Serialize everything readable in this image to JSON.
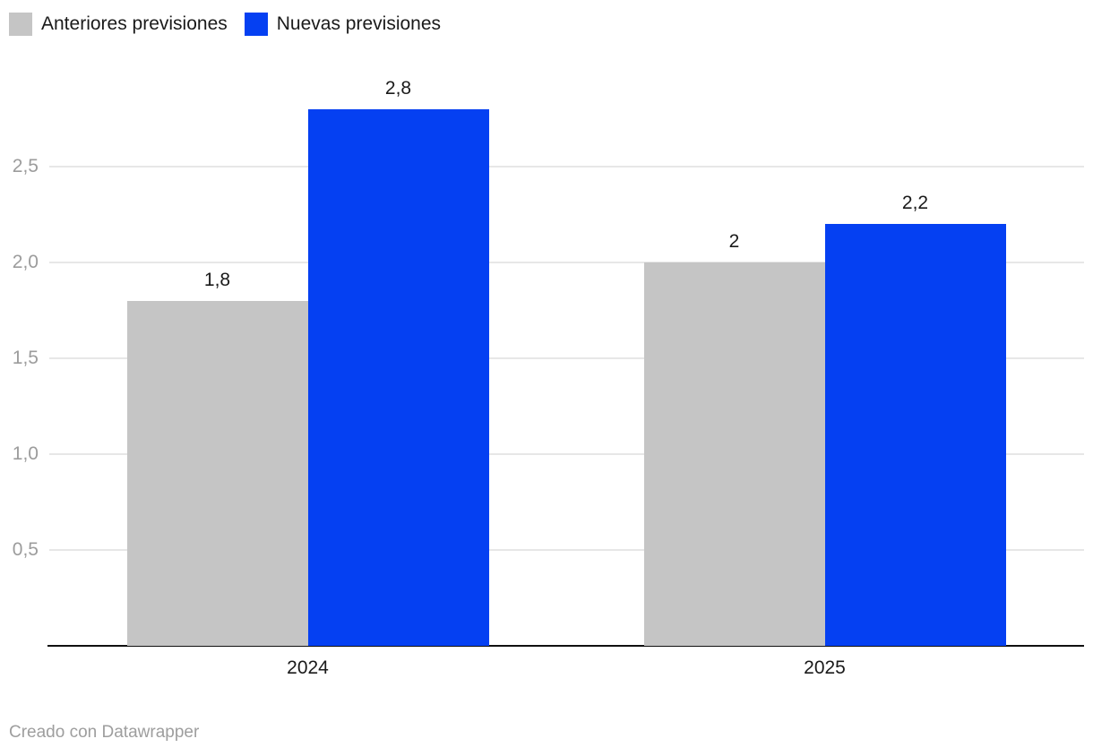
{
  "legend": {
    "items": [
      {
        "label": "Anteriores previsiones",
        "color": "#c5c5c5"
      },
      {
        "label": "Nuevas previsiones",
        "color": "#0540f2"
      }
    ]
  },
  "footer": {
    "attribution": "Creado con Datawrapper"
  },
  "chart_data": {
    "type": "bar",
    "subtype": "grouped-vertical",
    "categories": [
      "2024",
      "2025"
    ],
    "series": [
      {
        "name": "Anteriores previsiones",
        "color": "#c5c5c5",
        "values": [
          1.8,
          2
        ],
        "value_labels": [
          "1,8",
          "2"
        ]
      },
      {
        "name": "Nuevas previsiones",
        "color": "#0540f2",
        "values": [
          2.8,
          2.2
        ],
        "value_labels": [
          "2,8",
          "2,2"
        ]
      }
    ],
    "y_axis": {
      "ticks": [
        {
          "value": 0.5,
          "label": "0,5"
        },
        {
          "value": 1.0,
          "label": "1,0"
        },
        {
          "value": 1.5,
          "label": "1,5"
        },
        {
          "value": 2.0,
          "label": "2,0"
        },
        {
          "value": 2.5,
          "label": "2,5"
        }
      ],
      "range": [
        0,
        3
      ]
    },
    "grid": "horizontal",
    "legend_position": "top-left",
    "value_labels_shown": true,
    "decimal_separator": ",",
    "colors": {
      "grid": "#e7e7e7",
      "axis_line": "#111111",
      "tick_text": "#9c9c9c",
      "label_text": "#1a1a1a"
    }
  }
}
